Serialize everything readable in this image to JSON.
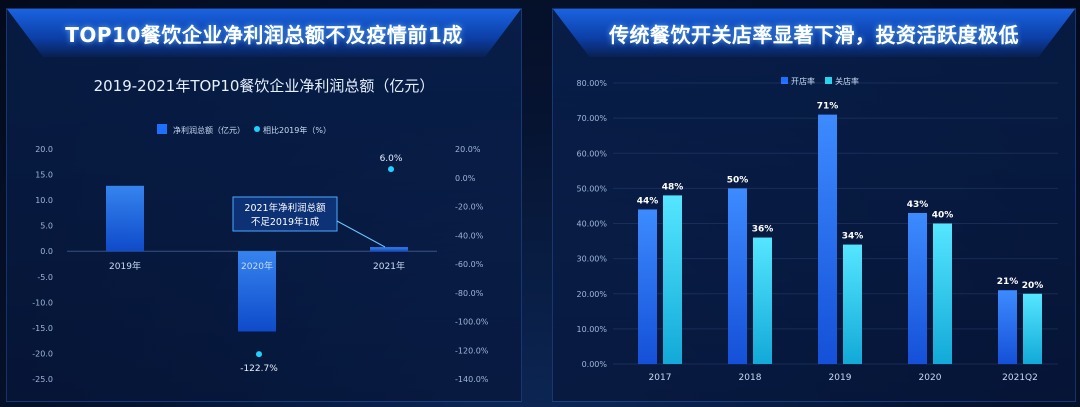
{
  "left_panel": {
    "header": "TOP10餐饮企业净利润总额不及疫情前1成"
  },
  "right_panel": {
    "header": "传统餐饮开关店率显著下滑，投资活跃度极低"
  },
  "chart_data": [
    {
      "type": "bar",
      "title": "2019-2021年TOP10餐饮企业净利润总额（亿元）",
      "categories": [
        "2019年",
        "2020年",
        "2021年"
      ],
      "series": [
        {
          "name": "净利润总额（亿元）",
          "type": "bar",
          "axis": "left",
          "values": [
            12.8,
            -15.7,
            0.8
          ]
        },
        {
          "name": "相比2019年（%）",
          "type": "scatter",
          "axis": "right",
          "values": [
            null,
            -122.7,
            6.0
          ],
          "labels": [
            "",
            "-122.7%",
            "6.0%"
          ]
        }
      ],
      "ylim_left": [
        -25,
        20
      ],
      "yticks_left": [
        "20.0",
        "15.0",
        "10.0",
        "5.0",
        "0.0",
        "-5.0",
        "-10.0",
        "-15.0",
        "-20.0",
        "-25.0"
      ],
      "ylim_right": [
        -140,
        20
      ],
      "yticks_right": [
        "20.0%",
        "0.0%",
        "-20.0%",
        "-40.0%",
        "-60.0%",
        "-80.0%",
        "-100.0%",
        "-120.0%",
        "-140.0%"
      ],
      "annotation": [
        "2021年净利润总额",
        "不足2019年1成"
      ],
      "legend_position": "top"
    },
    {
      "type": "bar",
      "categories": [
        "2017",
        "2018",
        "2019",
        "2020",
        "2021Q2"
      ],
      "series": [
        {
          "name": "开店率",
          "values": [
            44,
            50,
            71,
            43,
            21
          ],
          "labels": [
            "44%",
            "50%",
            "71%",
            "43%",
            "21%"
          ]
        },
        {
          "name": "关店率",
          "values": [
            48,
            36,
            34,
            40,
            20
          ],
          "labels": [
            "48%",
            "36%",
            "34%",
            "40%",
            "20%"
          ]
        }
      ],
      "ylim": [
        0,
        80
      ],
      "yticks": [
        "80.00%",
        "70.00%",
        "60.00%",
        "50.00%",
        "40.00%",
        "30.00%",
        "20.00%",
        "10.00%",
        "0.00%"
      ],
      "legend_position": "top"
    }
  ],
  "colors": {
    "bar_blue": "#1f6fff",
    "bar_cyan": "#28d3f0",
    "marker": "#22d0ff"
  }
}
